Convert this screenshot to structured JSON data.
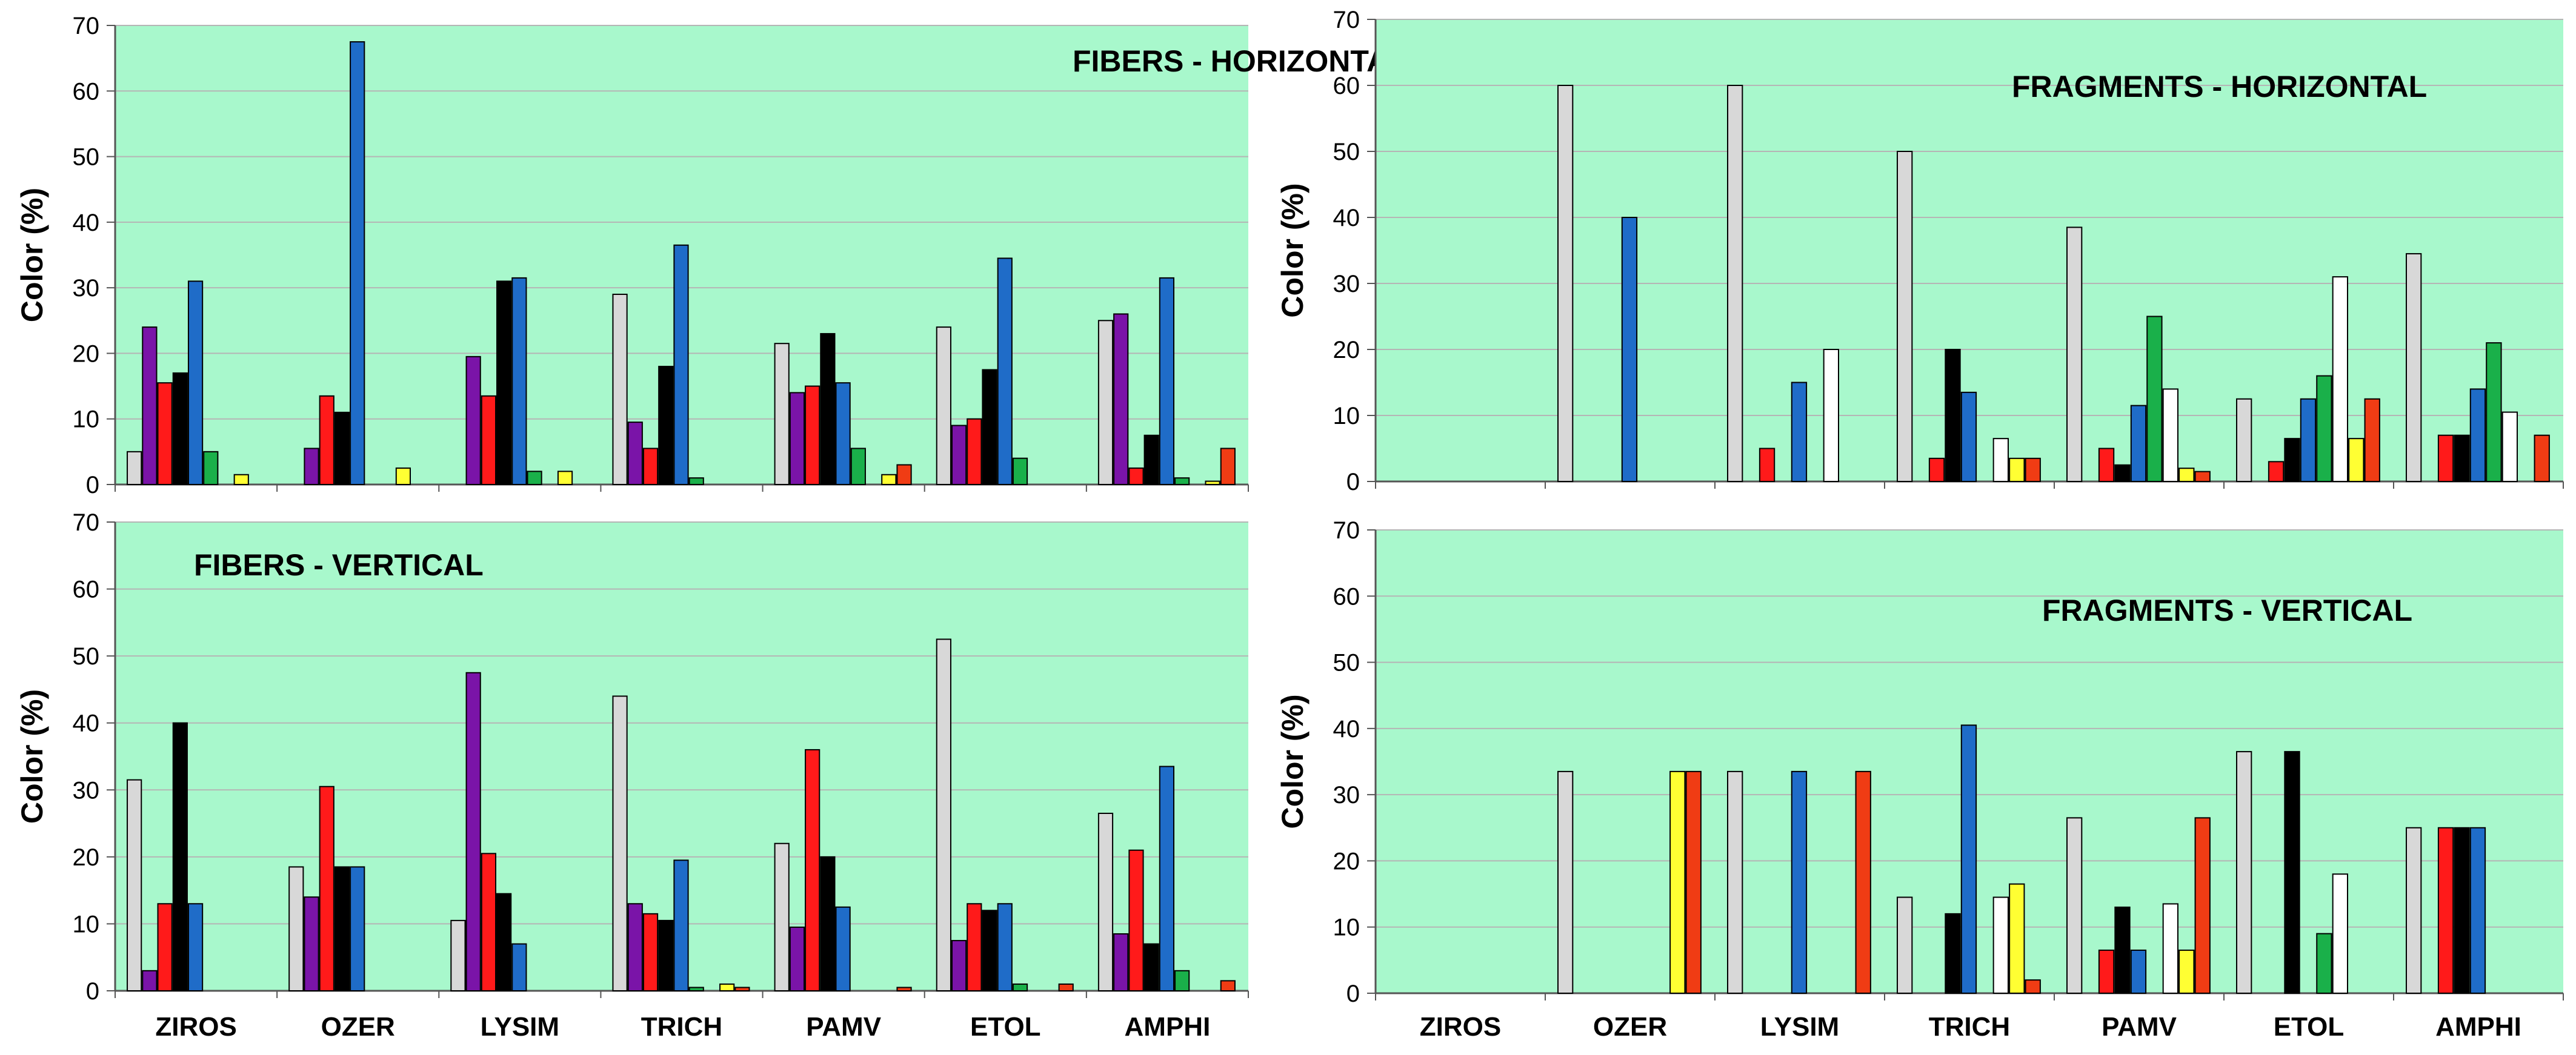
{
  "palette": {
    "plot_bg": "#a8f8cc",
    "grid": "#b5b5b5",
    "series_colors": [
      "#d8d8d8",
      "#7a14a8",
      "#ff1a1a",
      "#000000",
      "#1f6cc8",
      "#1ab04a",
      "#ffffff",
      "#ffff33",
      "#f03c14"
    ]
  },
  "chart_data": [
    {
      "type": "bar",
      "title": "FIBERS - HORIZONTAL",
      "title_placement": "top-right",
      "ylabel": "Color  (%)",
      "ylim": [
        0,
        70
      ],
      "yticks": [
        0,
        10,
        20,
        30,
        40,
        50,
        60,
        70
      ],
      "categories": [
        "ZIROS",
        "OZER",
        "LYSIM",
        "TRICH",
        "PAMV",
        "ETOL",
        "AMPHI"
      ],
      "grid": true,
      "series": [
        {
          "values": [
            5,
            0,
            0,
            29,
            21.5,
            24,
            25
          ]
        },
        {
          "values": [
            24,
            5.5,
            19.5,
            9.5,
            14,
            9,
            26
          ]
        },
        {
          "values": [
            15.5,
            13.5,
            13.5,
            5.5,
            15,
            10,
            2.5
          ]
        },
        {
          "values": [
            17,
            11,
            31,
            18,
            23,
            17.5,
            7.5
          ]
        },
        {
          "values": [
            31,
            67.5,
            31.5,
            36.5,
            15.5,
            34.5,
            31.5
          ]
        },
        {
          "values": [
            5,
            0,
            2,
            1,
            5.5,
            4,
            1
          ]
        },
        {
          "values": [
            0,
            0,
            0,
            0,
            0,
            0,
            0
          ]
        },
        {
          "values": [
            1.5,
            2.5,
            2,
            0,
            1.5,
            0,
            0.5
          ]
        },
        {
          "values": [
            0,
            0,
            0,
            0,
            3,
            0,
            5.5
          ]
        }
      ]
    },
    {
      "type": "bar",
      "title": "FRAGMENTS - HORIZONTAL",
      "title_placement": "top-right",
      "ylabel": "Color  (%)",
      "ylim": [
        0,
        70
      ],
      "yticks": [
        0,
        10,
        20,
        30,
        40,
        50,
        60,
        70
      ],
      "categories": [
        "ZIROS",
        "OZER",
        "LYSIM",
        "TRICH",
        "PAMV",
        "ETOL",
        "AMPHI"
      ],
      "grid": true,
      "series": [
        {
          "values": [
            0,
            60,
            60,
            50,
            38.5,
            12.5,
            34.5
          ]
        },
        {
          "values": [
            0,
            0,
            0,
            0,
            0,
            0,
            0
          ]
        },
        {
          "values": [
            0,
            0,
            5,
            3.5,
            5,
            3,
            7
          ]
        },
        {
          "values": [
            0,
            0,
            0,
            20,
            2.5,
            6.5,
            7
          ]
        },
        {
          "values": [
            0,
            40,
            15,
            13.5,
            11.5,
            12.5,
            14
          ]
        },
        {
          "values": [
            0,
            0,
            0,
            0,
            25,
            16,
            21
          ]
        },
        {
          "values": [
            0,
            0,
            20,
            6.5,
            14,
            31,
            10.5
          ]
        },
        {
          "values": [
            0,
            0,
            0,
            3.5,
            2,
            6.5,
            0
          ]
        },
        {
          "values": [
            0,
            0,
            0,
            3.5,
            1.5,
            12.5,
            7
          ]
        }
      ]
    },
    {
      "type": "bar",
      "title": "FIBERS - VERTICAL",
      "title_placement": "top-left",
      "ylabel": "Color  (%)",
      "ylim": [
        0,
        70
      ],
      "yticks": [
        0,
        10,
        20,
        30,
        40,
        50,
        60,
        70
      ],
      "categories": [
        "ZIROS",
        "OZER",
        "LYSIM",
        "TRICH",
        "PAMV",
        "ETOL",
        "AMPHI"
      ],
      "grid": true,
      "series": [
        {
          "values": [
            31.5,
            18.5,
            10.5,
            44,
            22,
            52.5,
            26.5
          ]
        },
        {
          "values": [
            3,
            14,
            47.5,
            13,
            9.5,
            7.5,
            8.5
          ]
        },
        {
          "values": [
            13,
            30.5,
            20.5,
            11.5,
            36,
            13,
            21
          ]
        },
        {
          "values": [
            40,
            18.5,
            14.5,
            10.5,
            20,
            12,
            7
          ]
        },
        {
          "values": [
            13,
            18.5,
            7,
            19.5,
            12.5,
            13,
            33.5
          ]
        },
        {
          "values": [
            0,
            0,
            0,
            0.5,
            0,
            1,
            3
          ]
        },
        {
          "values": [
            0,
            0,
            0,
            0,
            0,
            0,
            0
          ]
        },
        {
          "values": [
            0,
            0,
            0,
            1,
            0,
            0,
            0
          ]
        },
        {
          "values": [
            0,
            0,
            0,
            0.5,
            0.5,
            1,
            1.5
          ]
        }
      ]
    },
    {
      "type": "bar",
      "title": "FRAGMENTS - VERTICAL",
      "title_placement": "top-right",
      "ylabel": "Color  (%)",
      "ylim": [
        0,
        70
      ],
      "yticks": [
        0,
        10,
        20,
        30,
        40,
        50,
        60,
        70
      ],
      "categories": [
        "ZIROS",
        "OZER",
        "LYSIM",
        "TRICH",
        "PAMV",
        "ETOL",
        "AMPHI"
      ],
      "grid": true,
      "series": [
        {
          "values": [
            0,
            33.5,
            33.5,
            14.5,
            26.5,
            36.5,
            25
          ]
        },
        {
          "values": [
            0,
            0,
            0,
            0,
            0,
            0,
            0
          ]
        },
        {
          "values": [
            0,
            0,
            0,
            0,
            6.5,
            0,
            25
          ]
        },
        {
          "values": [
            0,
            0,
            0,
            12,
            13,
            36.5,
            25
          ]
        },
        {
          "values": [
            0,
            0,
            33.5,
            40.5,
            6.5,
            0,
            25
          ]
        },
        {
          "values": [
            0,
            0,
            0,
            0,
            0,
            9,
            0
          ]
        },
        {
          "values": [
            0,
            0,
            0,
            14.5,
            13.5,
            18,
            0
          ]
        },
        {
          "values": [
            0,
            33.5,
            0,
            16.5,
            6.5,
            0,
            0
          ]
        },
        {
          "values": [
            0,
            33.5,
            33.5,
            2,
            26.5,
            0,
            0
          ]
        }
      ]
    }
  ]
}
